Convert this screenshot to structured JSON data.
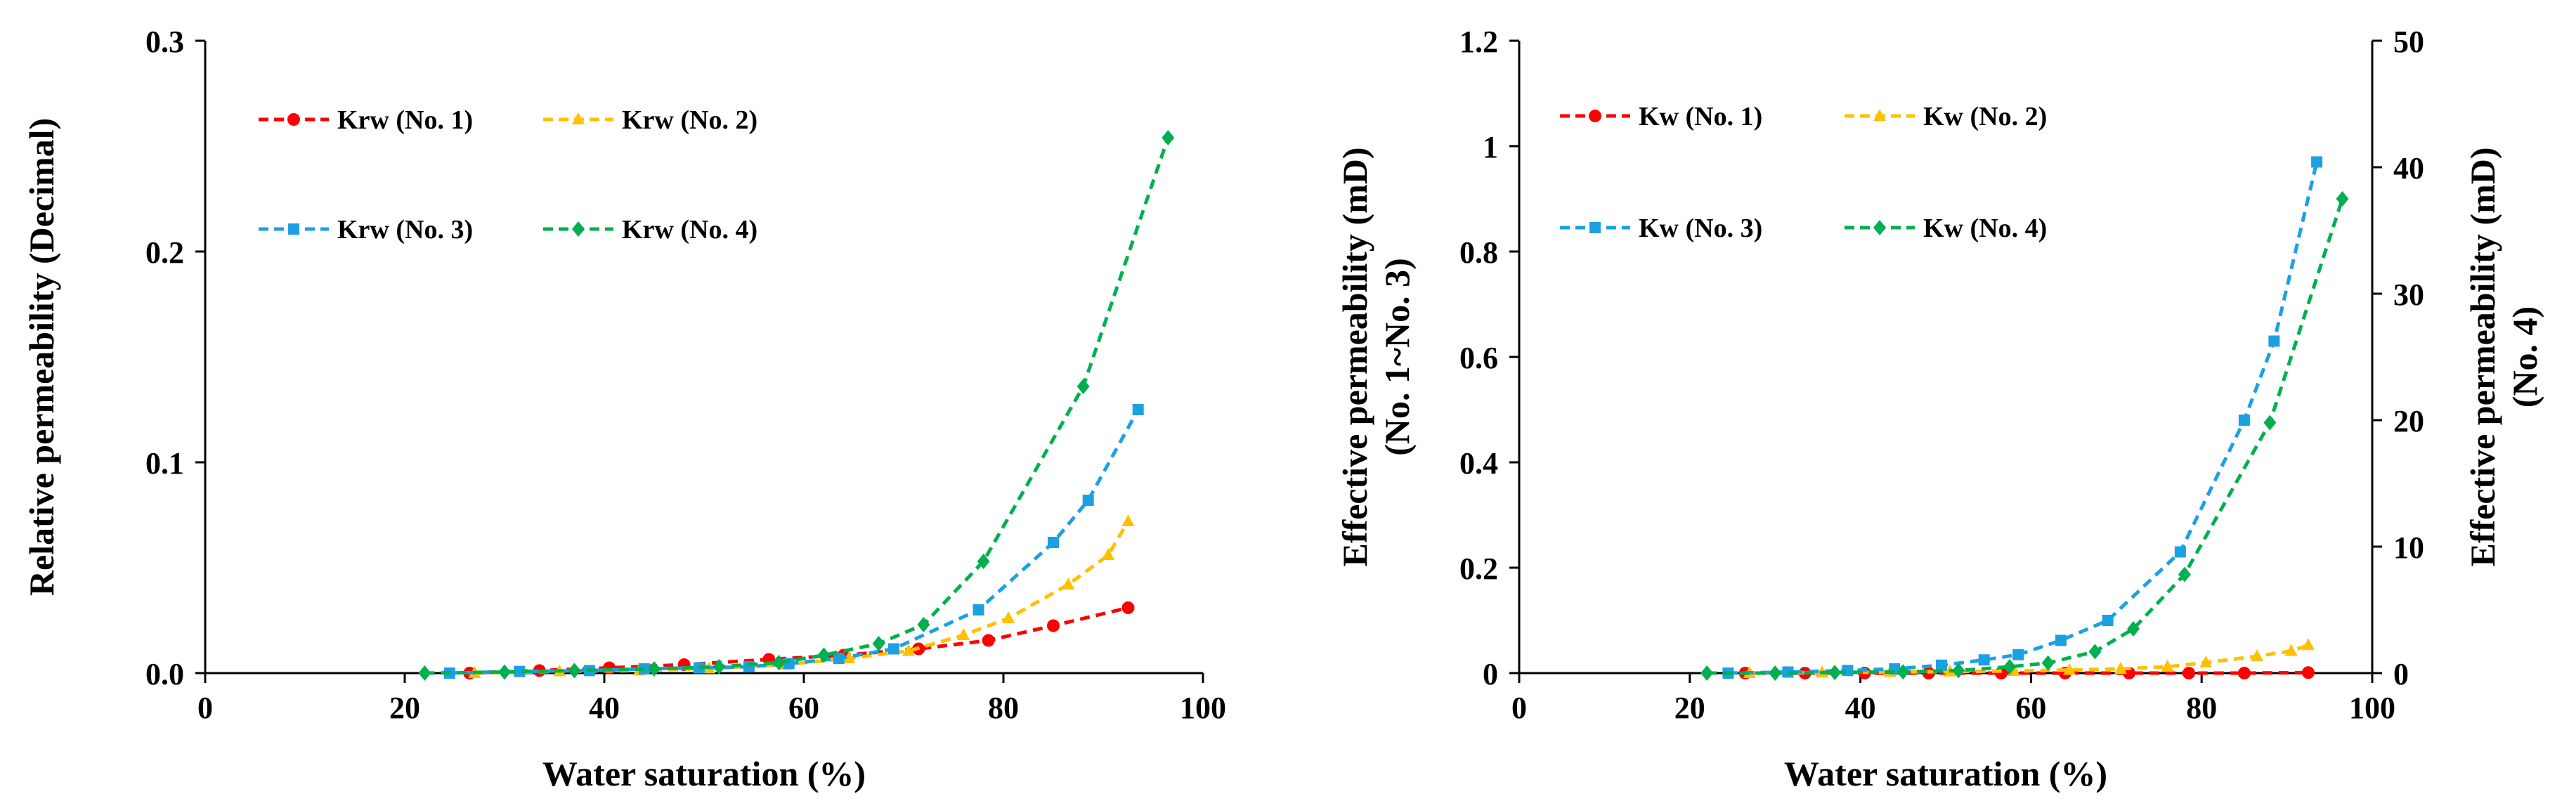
{
  "chart_data": [
    {
      "type": "line",
      "title": "",
      "xlabel": "Water saturation (%)",
      "ylabel": "Relative permeability (Decimal)",
      "xlim": [
        0,
        100
      ],
      "ylim": [
        0,
        0.3
      ],
      "x_ticks": [
        "0",
        "20",
        "40",
        "60",
        "80",
        "100"
      ],
      "y_ticks": [
        "0.0",
        "0.1",
        "0.2",
        "0.3"
      ],
      "legend_position": "top-left",
      "series": [
        {
          "name": "Krw (No. 1)",
          "color": "#ff0000",
          "marker": "circle",
          "points": [
            [
              26.5,
              0.0
            ],
            [
              33.5,
              0.0012
            ],
            [
              40.5,
              0.0025
            ],
            [
              48,
              0.004
            ],
            [
              56.5,
              0.0065
            ],
            [
              64,
              0.0085
            ],
            [
              71.5,
              0.0115
            ],
            [
              78.5,
              0.0155
            ],
            [
              85,
              0.0225
            ],
            [
              92.5,
              0.031
            ]
          ]
        },
        {
          "name": "Krw (No. 2)",
          "color": "#ffc000",
          "marker": "triangle",
          "points": [
            [
              27,
              0.0
            ],
            [
              35.5,
              0.0008
            ],
            [
              43.5,
              0.0012
            ],
            [
              50.5,
              0.0022
            ],
            [
              58,
              0.004
            ],
            [
              64.5,
              0.007
            ],
            [
              70.5,
              0.0105
            ],
            [
              76,
              0.018
            ],
            [
              80.5,
              0.026
            ],
            [
              86.5,
              0.042
            ],
            [
              90.5,
              0.056
            ],
            [
              92.5,
              0.072
            ]
          ]
        },
        {
          "name": "Krw (No. 3)",
          "color": "#1ba1e2",
          "marker": "square",
          "points": [
            [
              24.5,
              0.0
            ],
            [
              31.5,
              0.0008
            ],
            [
              38.5,
              0.0012
            ],
            [
              44,
              0.002
            ],
            [
              49.5,
              0.0025
            ],
            [
              54.5,
              0.003
            ],
            [
              58.5,
              0.0045
            ],
            [
              63.5,
              0.007
            ],
            [
              69,
              0.0115
            ],
            [
              77.5,
              0.03
            ],
            [
              85,
              0.062
            ],
            [
              88.5,
              0.082
            ],
            [
              93.5,
              0.125
            ]
          ]
        },
        {
          "name": "Krw (No. 4)",
          "color": "#00b050",
          "marker": "diamond",
          "points": [
            [
              22,
              0.0
            ],
            [
              30,
              0.0005
            ],
            [
              37,
              0.0012
            ],
            [
              45,
              0.002
            ],
            [
              51.5,
              0.003
            ],
            [
              57.5,
              0.005
            ],
            [
              62,
              0.0085
            ],
            [
              67.5,
              0.014
            ],
            [
              72,
              0.023
            ],
            [
              78,
              0.053
            ],
            [
              88,
              0.136
            ],
            [
              96.5,
              0.254
            ]
          ]
        }
      ]
    },
    {
      "type": "line",
      "title": "",
      "xlabel": "Water saturation (%)",
      "ylabel": "Effective permeability (mD)",
      "ylabel_sub": "(No. 1~No. 3)",
      "y2label": "Effective permeability (mD)",
      "y2label_sub": "(No. 4)",
      "xlim": [
        0,
        100
      ],
      "ylim": [
        0,
        1.2
      ],
      "y2lim": [
        0,
        50
      ],
      "x_ticks": [
        "0",
        "20",
        "40",
        "60",
        "80",
        "100"
      ],
      "y_ticks": [
        "0",
        "0.2",
        "0.4",
        "0.6",
        "0.8",
        "1",
        "1.2"
      ],
      "y2_ticks": [
        "0",
        "10",
        "20",
        "30",
        "40",
        "50"
      ],
      "legend_position": "top-left",
      "series": [
        {
          "name": "Kw (No. 1)",
          "color": "#ff0000",
          "marker": "circle",
          "axis": "left",
          "points": [
            [
              26.5,
              0.0
            ],
            [
              33.5,
              0.0
            ],
            [
              40.5,
              0.0
            ],
            [
              48,
              0.0
            ],
            [
              56.5,
              0.0
            ],
            [
              64,
              0.0
            ],
            [
              71.5,
              0.0
            ],
            [
              78.5,
              0.0
            ],
            [
              85,
              0.0
            ],
            [
              92.5,
              0.001
            ]
          ]
        },
        {
          "name": "Kw (No. 2)",
          "color": "#ffc000",
          "marker": "triangle",
          "axis": "left",
          "points": [
            [
              27,
              0.0
            ],
            [
              35.5,
              0.001
            ],
            [
              43.5,
              0.002
            ],
            [
              50.5,
              0.003
            ],
            [
              58,
              0.004
            ],
            [
              64.5,
              0.006
            ],
            [
              70.5,
              0.008
            ],
            [
              76,
              0.012
            ],
            [
              80.5,
              0.02
            ],
            [
              86.5,
              0.032
            ],
            [
              90.5,
              0.042
            ],
            [
              92.5,
              0.053
            ]
          ]
        },
        {
          "name": "Kw (No. 3)",
          "color": "#1ba1e2",
          "marker": "square",
          "axis": "left",
          "points": [
            [
              24.5,
              0.0
            ],
            [
              31.5,
              0.002
            ],
            [
              38.5,
              0.005
            ],
            [
              44,
              0.008
            ],
            [
              49.5,
              0.015
            ],
            [
              54.5,
              0.025
            ],
            [
              58.5,
              0.035
            ],
            [
              63.5,
              0.062
            ],
            [
              69,
              0.1
            ],
            [
              77.5,
              0.23
            ],
            [
              85,
              0.48
            ],
            [
              88.5,
              0.63
            ],
            [
              93.5,
              0.97
            ]
          ]
        },
        {
          "name": "Kw (No. 4)",
          "color": "#00b050",
          "marker": "diamond",
          "axis": "right",
          "points": [
            [
              22,
              0.0
            ],
            [
              30,
              0.0
            ],
            [
              37,
              0.05
            ],
            [
              45,
              0.1
            ],
            [
              51.5,
              0.2
            ],
            [
              57.5,
              0.5
            ],
            [
              62,
              0.8
            ],
            [
              67.5,
              1.7
            ],
            [
              72,
              3.5
            ],
            [
              78,
              7.8
            ],
            [
              88,
              19.8
            ],
            [
              96.5,
              37.5
            ]
          ]
        }
      ]
    }
  ]
}
